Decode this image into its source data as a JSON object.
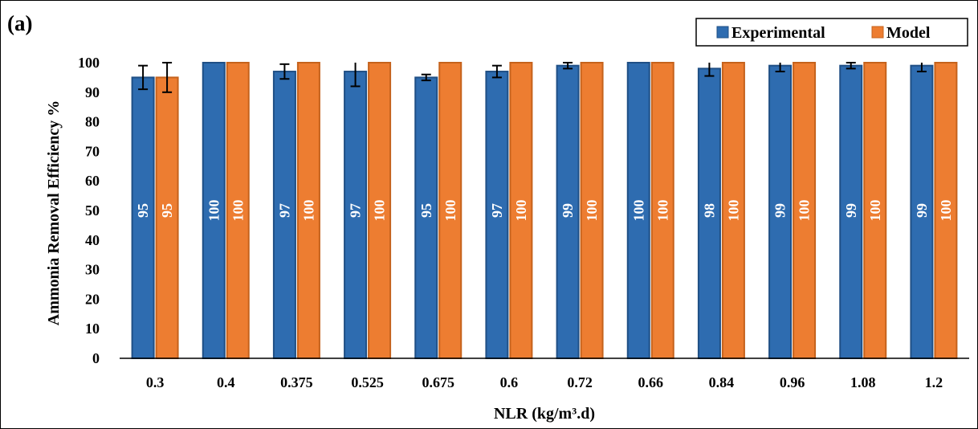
{
  "panel_label": "(a)",
  "legend": {
    "experimental": "Experimental",
    "model": "Model"
  },
  "colors": {
    "experimental": "#2E6CB0",
    "experimental_edge": "#1F4F85",
    "model": "#ED7D31",
    "model_edge": "#C5621C",
    "error_bar": "#000000"
  },
  "chart_data": {
    "type": "bar",
    "xlabel": "NLR (kg/m³.d)",
    "ylabel": "Ammonia Removal Efficiency  %",
    "ylim": [
      0,
      100
    ],
    "yticks": [
      0,
      10,
      20,
      30,
      40,
      50,
      60,
      70,
      80,
      90,
      100
    ],
    "categories": [
      "0.3",
      "0.4",
      "0.375",
      "0.525",
      "0.675",
      "0.6",
      "0.72",
      "0.66",
      "0.84",
      "0.96",
      "1.08",
      "1.2"
    ],
    "series": [
      {
        "name": "Experimental",
        "values": [
          95,
          100,
          97,
          97,
          95,
          97,
          99,
          100,
          98,
          99,
          99,
          99
        ],
        "error": [
          4,
          0,
          2.5,
          5,
          1,
          2,
          1,
          0,
          2.5,
          2,
          1,
          2
        ]
      },
      {
        "name": "Model",
        "values": [
          95,
          100,
          100,
          100,
          100,
          100,
          100,
          100,
          100,
          100,
          100,
          100
        ],
        "error": [
          5,
          0,
          0,
          0,
          0,
          0,
          0,
          0,
          0,
          0,
          0,
          0
        ]
      }
    ],
    "legend_position": "top-right",
    "grid": false
  }
}
